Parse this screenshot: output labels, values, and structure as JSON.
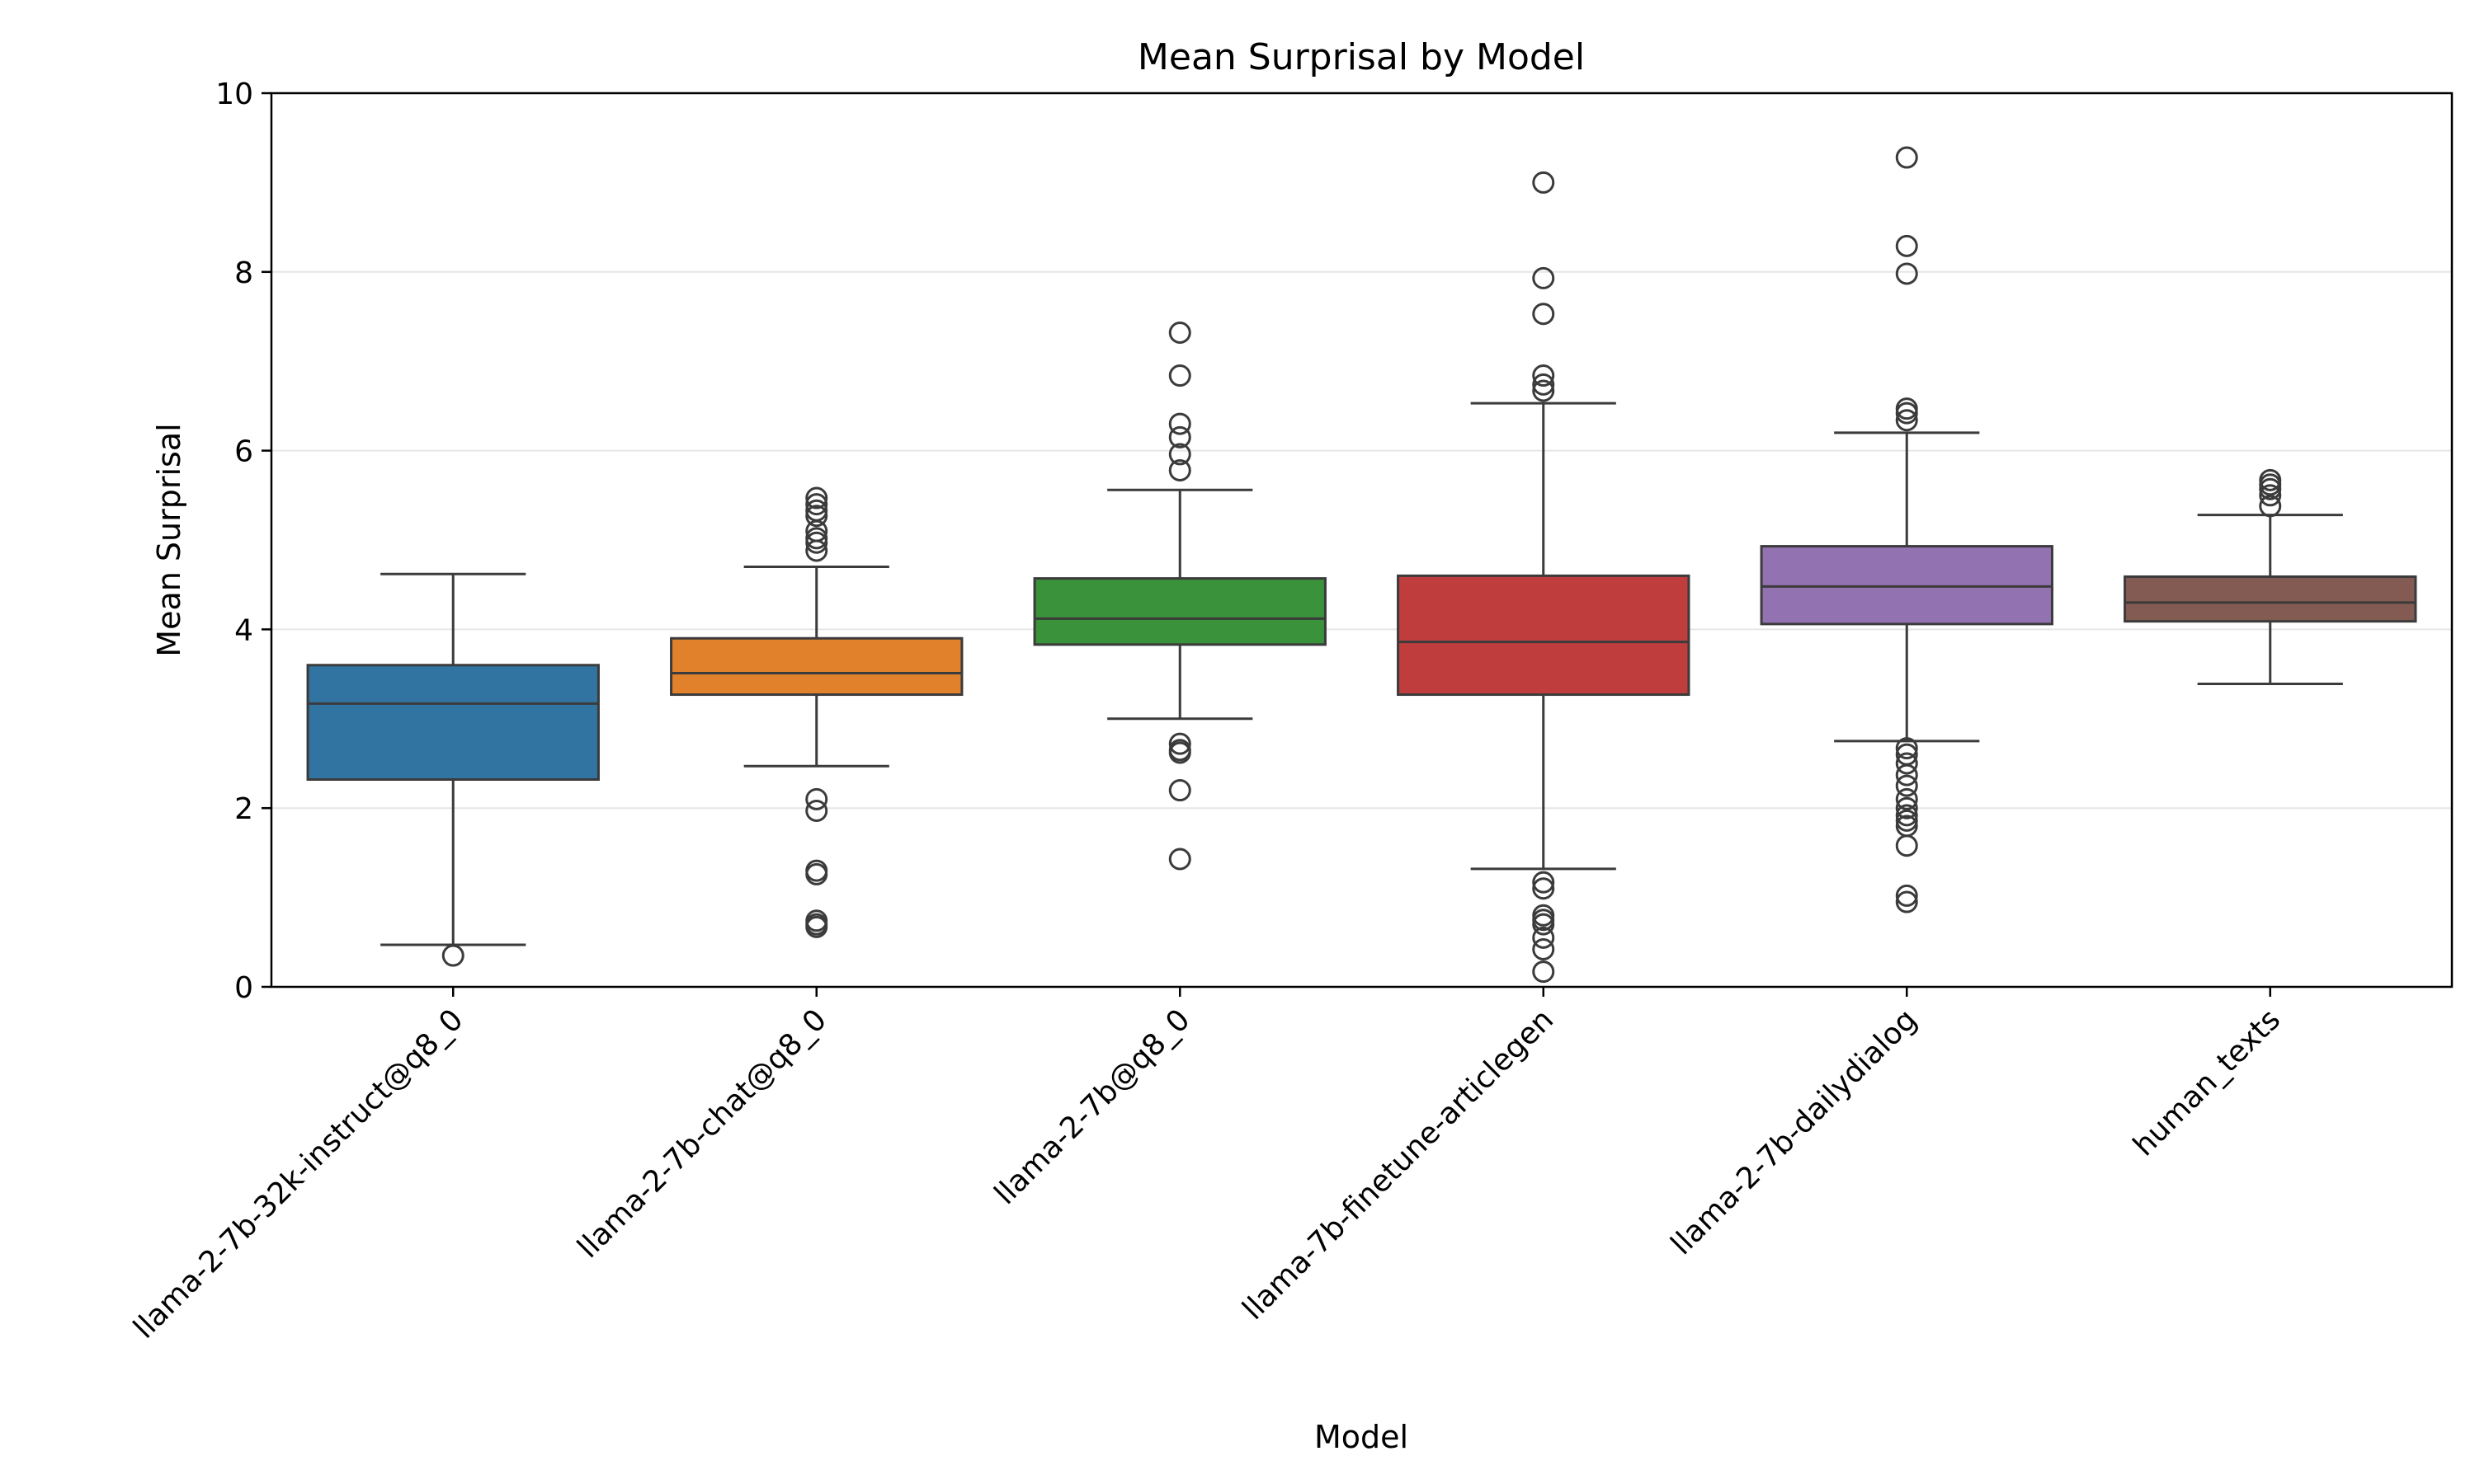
{
  "chart_data": {
    "type": "box",
    "title": "Mean Surprisal by Model",
    "xlabel": "Model",
    "ylabel": "Mean Surprisal",
    "ylim": [
      0,
      10
    ],
    "yticks": [
      0,
      2,
      4,
      6,
      8,
      10
    ],
    "grid": "horizontal",
    "categories": [
      "llama-2-7b-32k-instruct@q8_0",
      "llama-2-7b-chat@q8_0",
      "llama-2-7b@q8_0",
      "llama-7b-finetune-articlegen",
      "llama-2-7b-dailydialog",
      "human_texts"
    ],
    "colors": [
      "#3274a1",
      "#e1812c",
      "#3a923a",
      "#c03d3e",
      "#9372b2",
      "#845b53"
    ],
    "series": [
      {
        "whisker_low": 0.47,
        "q1": 2.32,
        "median": 3.17,
        "q3": 3.6,
        "whisker_high": 4.62,
        "outliers": [
          0.35
        ]
      },
      {
        "whisker_low": 2.47,
        "q1": 3.27,
        "median": 3.51,
        "q3": 3.9,
        "whisker_high": 4.7,
        "outliers": [
          5.47,
          5.4,
          5.33,
          5.27,
          5.1,
          5.02,
          4.97,
          4.88,
          2.1,
          1.97,
          1.3,
          1.26,
          0.74,
          0.7,
          0.67
        ]
      },
      {
        "whisker_low": 3.0,
        "q1": 3.83,
        "median": 4.12,
        "q3": 4.57,
        "whisker_high": 5.56,
        "outliers": [
          7.32,
          6.84,
          6.3,
          6.15,
          5.96,
          5.78,
          2.72,
          2.65,
          2.62,
          2.2,
          1.43
        ]
      },
      {
        "whisker_low": 1.32,
        "q1": 3.27,
        "median": 3.86,
        "q3": 4.6,
        "whisker_high": 6.53,
        "outliers": [
          9.0,
          7.93,
          7.53,
          6.84,
          6.74,
          6.67,
          1.17,
          1.1,
          0.8,
          0.75,
          0.7,
          0.55,
          0.42,
          0.17
        ]
      },
      {
        "whisker_low": 2.75,
        "q1": 4.06,
        "median": 4.48,
        "q3": 4.93,
        "whisker_high": 6.2,
        "outliers": [
          9.28,
          8.29,
          7.98,
          6.47,
          6.42,
          6.34,
          2.67,
          2.6,
          2.5,
          2.37,
          2.25,
          2.1,
          2.0,
          1.92,
          1.86,
          1.8,
          1.58,
          1.02,
          0.95
        ]
      },
      {
        "whisker_low": 3.39,
        "q1": 4.09,
        "median": 4.3,
        "q3": 4.59,
        "whisker_high": 5.28,
        "outliers": [
          5.67,
          5.62,
          5.57,
          5.5,
          5.38
        ]
      }
    ]
  }
}
